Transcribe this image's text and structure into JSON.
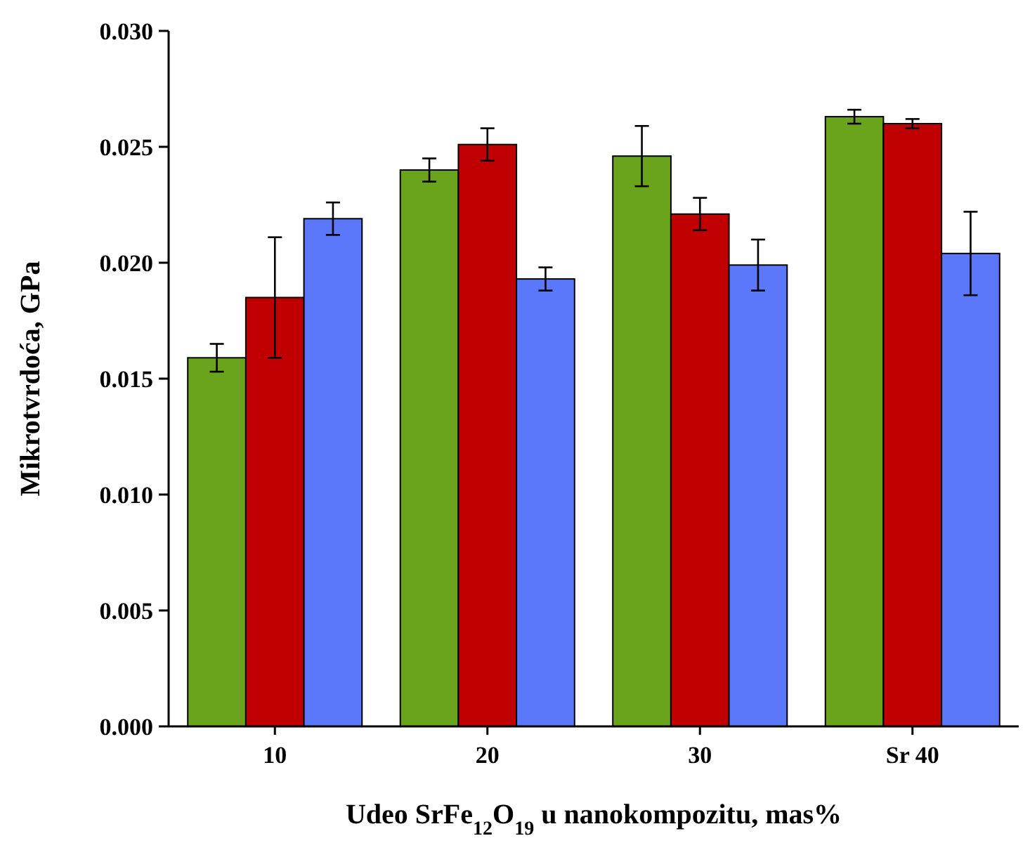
{
  "chart_data": {
    "type": "bar",
    "xlabel": "Udeo SrFe$_{12}$O$_{19}$ u nanokompozitu, mas%",
    "ylabel": "Mikrotvrdoća, GPa",
    "categories": [
      "10",
      "20",
      "30",
      "Sr 40"
    ],
    "series": [
      {
        "color": "#6aa31c",
        "values": [
          0.0159,
          0.024,
          0.0246,
          0.0263
        ],
        "errors": [
          0.0006,
          0.0005,
          0.0013,
          0.0003
        ]
      },
      {
        "color": "#c00000",
        "values": [
          0.0185,
          0.0251,
          0.0221,
          0.026
        ],
        "errors": [
          0.0026,
          0.0007,
          0.0007,
          0.0002
        ]
      },
      {
        "color": "#5b78fa",
        "values": [
          0.0219,
          0.0193,
          0.0199,
          0.0204
        ],
        "errors": [
          0.0007,
          0.0005,
          0.0011,
          0.0018
        ]
      }
    ],
    "ylim": [
      0,
      0.03
    ],
    "yticks": [
      {
        "value": 0,
        "label": "0.000"
      },
      {
        "value": 0.005,
        "label": "0.005"
      },
      {
        "value": 0.01,
        "label": "0.010"
      },
      {
        "value": 0.015,
        "label": "0.015"
      },
      {
        "value": 0.02,
        "label": "0.020"
      },
      {
        "value": 0.025,
        "label": "0.025"
      },
      {
        "value": 0.03,
        "label": "0.030"
      }
    ],
    "grid": false
  }
}
